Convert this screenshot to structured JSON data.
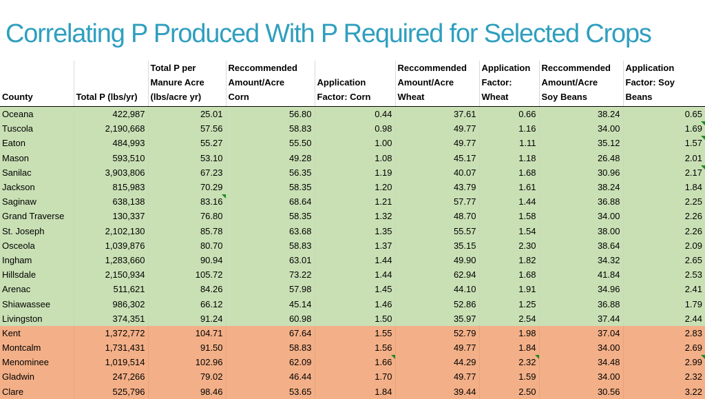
{
  "title": "Correlating P Produced With P Required for Selected Crops",
  "colors": {
    "title": "#2f9fbf",
    "green_rows": "#c9e0b5",
    "orange_rows": "#f3b088",
    "comment_marker": "#1e8a1e"
  },
  "columns": [
    "County",
    "Total P (lbs/yr)",
    "Total P per\nManure Acre\n(lbs/acre yr)",
    "Reccommended\nAmount/Acre\nCorn",
    "Application\nFactor: Corn",
    "Reccommended\nAmount/Acre\nWheat",
    "Application\nFactor:\nWheat",
    "Reccommended\nAmount/Acre\nSoy Beans",
    "Application\nFactor: Soy\nBeans"
  ],
  "rows": [
    {
      "tier": "green",
      "cells": [
        "Oceana",
        "422,987",
        "25.01",
        "56.80",
        "0.44",
        "37.61",
        "0.66",
        "38.24",
        "0.65"
      ]
    },
    {
      "tier": "green",
      "cells": [
        "Tuscola",
        "2,190,668",
        "57.56",
        "58.83",
        "0.98",
        "49.77",
        "1.16",
        "34.00",
        "1.69"
      ]
    },
    {
      "tier": "green",
      "cells": [
        "Eaton",
        "484,993",
        "55.27",
        "55.50",
        "1.00",
        "49.77",
        "1.11",
        "35.12",
        "1.57"
      ]
    },
    {
      "tier": "green",
      "cells": [
        "Mason",
        "593,510",
        "53.10",
        "49.28",
        "1.08",
        "45.17",
        "1.18",
        "26.48",
        "2.01"
      ]
    },
    {
      "tier": "green",
      "cells": [
        "Sanilac",
        "3,903,806",
        "67.23",
        "56.35",
        "1.19",
        "40.07",
        "1.68",
        "30.96",
        "2.17"
      ]
    },
    {
      "tier": "green",
      "cells": [
        "Jackson",
        "815,983",
        "70.29",
        "58.35",
        "1.20",
        "43.79",
        "1.61",
        "38.24",
        "1.84"
      ]
    },
    {
      "tier": "green",
      "cells": [
        "Saginaw",
        "638,138",
        "83.16",
        "68.64",
        "1.21",
        "57.77",
        "1.44",
        "36.88",
        "2.25"
      ]
    },
    {
      "tier": "green",
      "cells": [
        "Grand Traverse",
        "130,337",
        "76.80",
        "58.35",
        "1.32",
        "48.70",
        "1.58",
        "34.00",
        "2.26"
      ]
    },
    {
      "tier": "green",
      "cells": [
        "St. Joseph",
        "2,102,130",
        "85.78",
        "63.68",
        "1.35",
        "55.57",
        "1.54",
        "38.00",
        "2.26"
      ]
    },
    {
      "tier": "green",
      "cells": [
        "Osceola",
        "1,039,876",
        "80.70",
        "58.83",
        "1.37",
        "35.15",
        "2.30",
        "38.64",
        "2.09"
      ]
    },
    {
      "tier": "green",
      "cells": [
        "Ingham",
        "1,283,660",
        "90.94",
        "63.01",
        "1.44",
        "49.90",
        "1.82",
        "34.32",
        "2.65"
      ]
    },
    {
      "tier": "green",
      "cells": [
        "Hillsdale",
        "2,150,934",
        "105.72",
        "73.22",
        "1.44",
        "62.94",
        "1.68",
        "41.84",
        "2.53"
      ]
    },
    {
      "tier": "green",
      "cells": [
        "Arenac",
        "511,621",
        "84.26",
        "57.98",
        "1.45",
        "44.10",
        "1.91",
        "34.96",
        "2.41"
      ]
    },
    {
      "tier": "green",
      "cells": [
        "Shiawassee",
        "986,302",
        "66.12",
        "45.14",
        "1.46",
        "52.86",
        "1.25",
        "36.88",
        "1.79"
      ]
    },
    {
      "tier": "green",
      "cells": [
        "Livingston",
        "374,351",
        "91.24",
        "60.98",
        "1.50",
        "35.97",
        "2.54",
        "37.44",
        "2.44"
      ]
    },
    {
      "tier": "orange",
      "cells": [
        "Kent",
        "1,372,772",
        "104.71",
        "67.64",
        "1.55",
        "52.79",
        "1.98",
        "37.04",
        "2.83"
      ]
    },
    {
      "tier": "orange",
      "cells": [
        "Montcalm",
        "1,731,431",
        "91.50",
        "58.83",
        "1.56",
        "49.77",
        "1.84",
        "34.00",
        "2.69"
      ]
    },
    {
      "tier": "orange",
      "cells": [
        "Menominee",
        "1,019,514",
        "102.96",
        "62.09",
        "1.66",
        "44.29",
        "2.32",
        "34.48",
        "2.99"
      ]
    },
    {
      "tier": "orange",
      "cells": [
        "Gladwin",
        "247,266",
        "79.02",
        "46.44",
        "1.70",
        "49.77",
        "1.59",
        "34.00",
        "2.32"
      ]
    },
    {
      "tier": "orange",
      "cells": [
        "Clare",
        "525,796",
        "98.46",
        "53.65",
        "1.84",
        "39.44",
        "2.50",
        "30.56",
        "3.22"
      ]
    }
  ]
}
